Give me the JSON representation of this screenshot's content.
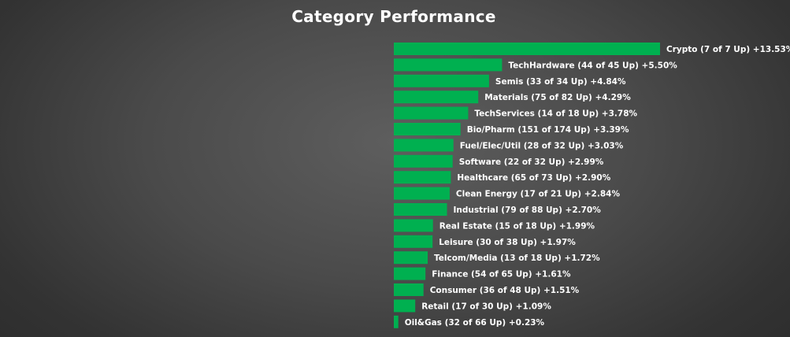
{
  "chart_data": {
    "type": "bar",
    "orientation": "horizontal",
    "title": "Category Performance",
    "bar_color": "#00b050",
    "background_color": "#4a4a4a",
    "label_color": "#ffffff",
    "grid": false,
    "legend": "none",
    "xlim": [
      0,
      13.53
    ],
    "bars": [
      {
        "category": "Crypto",
        "up": 7,
        "total": 7,
        "value": 13.53,
        "label": "Crypto (7 of 7 Up) +13.53%"
      },
      {
        "category": "TechHardware",
        "up": 44,
        "total": 45,
        "value": 5.5,
        "label": "TechHardware (44 of 45 Up) +5.50%"
      },
      {
        "category": "Semis",
        "up": 33,
        "total": 34,
        "value": 4.84,
        "label": "Semis (33 of 34 Up) +4.84%"
      },
      {
        "category": "Materials",
        "up": 75,
        "total": 82,
        "value": 4.29,
        "label": "Materials (75 of 82 Up) +4.29%"
      },
      {
        "category": "TechServices",
        "up": 14,
        "total": 18,
        "value": 3.78,
        "label": "TechServices (14 of 18 Up) +3.78%"
      },
      {
        "category": "Bio/Pharm",
        "up": 151,
        "total": 174,
        "value": 3.39,
        "label": "Bio/Pharm (151 of 174 Up) +3.39%"
      },
      {
        "category": "Fuel/Elec/Util",
        "up": 28,
        "total": 32,
        "value": 3.03,
        "label": "Fuel/Elec/Util (28 of 32 Up) +3.03%"
      },
      {
        "category": "Software",
        "up": 22,
        "total": 32,
        "value": 2.99,
        "label": "Software (22 of 32 Up) +2.99%"
      },
      {
        "category": "Healthcare",
        "up": 65,
        "total": 73,
        "value": 2.9,
        "label": "Healthcare (65 of 73 Up) +2.90%"
      },
      {
        "category": "Clean Energy",
        "up": 17,
        "total": 21,
        "value": 2.84,
        "label": "Clean Energy (17 of 21 Up) +2.84%"
      },
      {
        "category": "Industrial",
        "up": 79,
        "total": 88,
        "value": 2.7,
        "label": "Industrial (79 of 88 Up) +2.70%"
      },
      {
        "category": "Real Estate",
        "up": 15,
        "total": 18,
        "value": 1.99,
        "label": "Real Estate (15 of 18 Up) +1.99%"
      },
      {
        "category": "Leisure",
        "up": 30,
        "total": 38,
        "value": 1.97,
        "label": "Leisure (30 of 38 Up) +1.97%"
      },
      {
        "category": "Telcom/Media",
        "up": 13,
        "total": 18,
        "value": 1.72,
        "label": "Telcom/Media (13 of 18 Up) +1.72%"
      },
      {
        "category": "Finance",
        "up": 54,
        "total": 65,
        "value": 1.61,
        "label": "Finance (54 of 65 Up) +1.61%"
      },
      {
        "category": "Consumer",
        "up": 36,
        "total": 48,
        "value": 1.51,
        "label": "Consumer (36 of 48 Up) +1.51%"
      },
      {
        "category": "Retail",
        "up": 17,
        "total": 30,
        "value": 1.09,
        "label": "Retail (17 of 30 Up) +1.09%"
      },
      {
        "category": "Oil&Gas",
        "up": 32,
        "total": 66,
        "value": 0.23,
        "label": "Oil&Gas (32 of 66 Up) +0.23%"
      }
    ]
  }
}
